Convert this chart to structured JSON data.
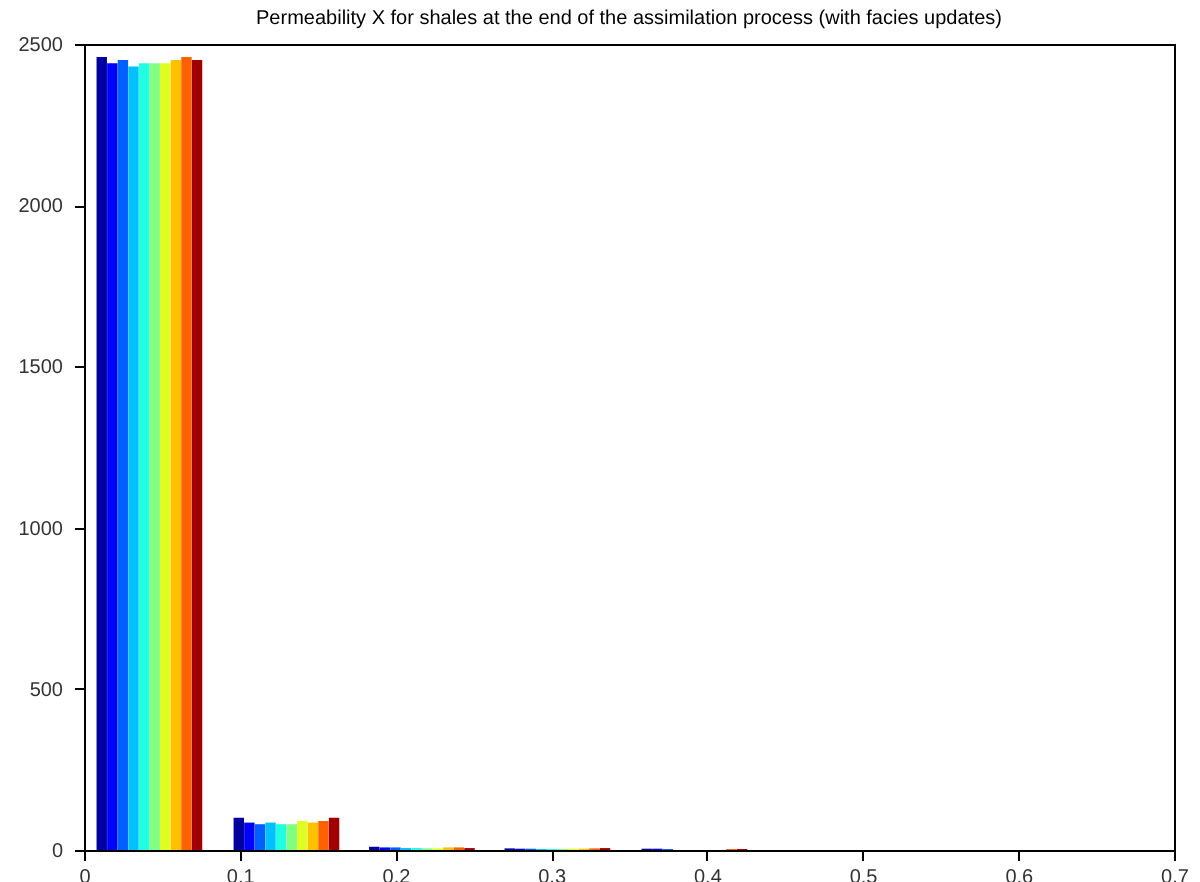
{
  "chart_data": {
    "type": "bar",
    "title": "Permeability X for shales at the end of the assimilation process (with facies updates)",
    "xlim": [
      0,
      0.7
    ],
    "xticks": [
      0,
      0.1,
      0.2,
      0.3,
      0.4,
      0.5,
      0.6,
      0.7
    ],
    "ylim": [
      0,
      2500
    ],
    "yticks": [
      0,
      500,
      1000,
      1500,
      2000,
      2500
    ],
    "grid": false,
    "series": [
      {
        "color": "#0000a0",
        "x": [
          0.0114,
          0.0994,
          0.1864,
          0.2734,
          0.3614
        ],
        "values": [
          2460,
          100,
          10,
          5,
          4
        ]
      },
      {
        "color": "#0000ff",
        "x": [
          0.0182,
          0.1062,
          0.1932,
          0.2802,
          0.3682
        ],
        "values": [
          2440,
          85,
          8,
          4,
          4
        ]
      },
      {
        "color": "#0060ff",
        "x": [
          0.025,
          0.113,
          0.2,
          0.287,
          0.375
        ],
        "values": [
          2450,
          80,
          8,
          4,
          3
        ]
      },
      {
        "color": "#00c0ff",
        "x": [
          0.0318,
          0.1198,
          0.2068,
          0.2938
        ],
        "values": [
          2430,
          85,
          6,
          3
        ]
      },
      {
        "color": "#20ffdf",
        "x": [
          0.0386,
          0.1266,
          0.2136,
          0.3006
        ],
        "values": [
          2440,
          80,
          6,
          3
        ]
      },
      {
        "color": "#80ff80",
        "x": [
          0.0454,
          0.1334,
          0.2204,
          0.3074
        ],
        "values": [
          2440,
          80,
          5,
          3
        ]
      },
      {
        "color": "#dfff20",
        "x": [
          0.0522,
          0.1402,
          0.2272,
          0.3142
        ],
        "values": [
          2440,
          90,
          5,
          4
        ]
      },
      {
        "color": "#ffc000",
        "x": [
          0.059,
          0.147,
          0.234,
          0.321
        ],
        "values": [
          2450,
          85,
          8,
          4
        ]
      },
      {
        "color": "#ff6000",
        "x": [
          0.0658,
          0.1538,
          0.2408,
          0.3278,
          0.4158
        ],
        "values": [
          2460,
          90,
          8,
          5,
          3
        ]
      },
      {
        "color": "#a00000",
        "x": [
          0.0726,
          0.1606,
          0.2476,
          0.3346,
          0.4226
        ],
        "values": [
          2450,
          100,
          6,
          6,
          3
        ]
      }
    ]
  }
}
